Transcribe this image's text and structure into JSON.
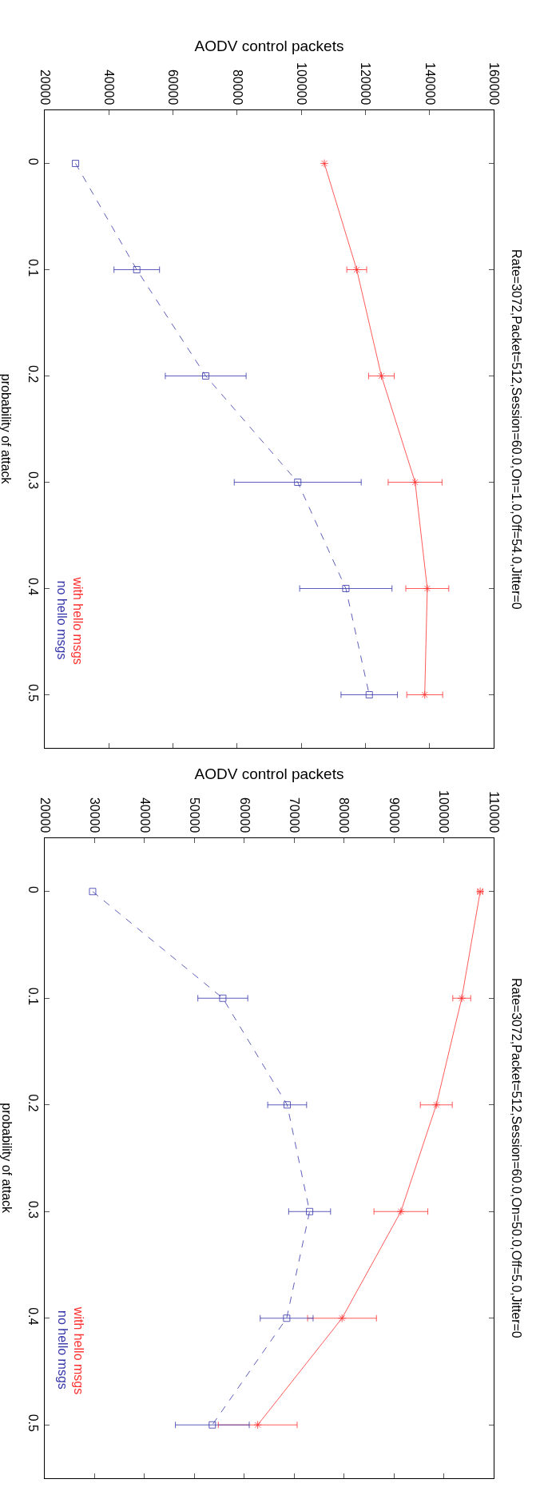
{
  "chart_data": [
    {
      "type": "line",
      "annotations": [
        "Rate=3072,Packet=512,Session=60.0,On=1.0,Off=54.0,Jitter=0"
      ],
      "ylabel": "probability of attack",
      "xlabel": "AODV control packets",
      "ylim": [
        0.55,
        -0.05
      ],
      "yticks": [
        0,
        0.1,
        0.2,
        0.3,
        0.4,
        0.5
      ],
      "xlim": [
        20000,
        160000
      ],
      "xticks": [
        20000,
        40000,
        60000,
        80000,
        100000,
        120000,
        140000,
        160000
      ],
      "legend": "bottom left",
      "series": [
        {
          "name": "with hello msgs",
          "color": "#ff3030",
          "marker": "cross",
          "line_style": "solid",
          "values": [
            0,
            0.1,
            0.2,
            0.3,
            0.4,
            0.5
          ],
          "x": [
            107200,
            117300,
            125000,
            135500,
            139300,
            138500
          ],
          "xerrors": [
            null,
            3100,
            4000,
            8400,
            6700,
            5600
          ]
        },
        {
          "name": "no hello msgs",
          "color": "#3434a8",
          "marker": "square",
          "line_style": "dashed",
          "values": [
            0,
            0.1,
            0.2,
            0.3,
            0.4,
            0.5
          ],
          "x": [
            29600,
            48700,
            70200,
            98900,
            113900,
            121200
          ],
          "xerrors": [
            null,
            7100,
            12600,
            19800,
            14400,
            8800
          ]
        }
      ]
    },
    {
      "type": "line",
      "annotations": [
        "Rate=3072,Packet=512,Session=60.0,On=50.0,Off=5.0,Jitter=0"
      ],
      "ylabel": "probability of attack",
      "xlabel": "AODV control packets",
      "ylim": [
        0.55,
        -0.05
      ],
      "yticks": [
        0,
        0.1,
        0.2,
        0.3,
        0.4,
        0.5
      ],
      "xlim": [
        20000,
        110000
      ],
      "xticks": [
        20000,
        30000,
        40000,
        50000,
        60000,
        70000,
        80000,
        90000,
        100000,
        110000
      ],
      "legend": "bottom left",
      "series": [
        {
          "name": "with hello msgs",
          "color": "#ff3030",
          "marker": "cross",
          "line_style": "solid",
          "values": [
            0,
            0.1,
            0.2,
            0.3,
            0.4,
            0.5
          ],
          "x": [
            107300,
            103600,
            98500,
            91400,
            79600,
            62700
          ],
          "xerrors": [
            500,
            1800,
            3200,
            5400,
            6900,
            7900
          ]
        },
        {
          "name": "no hello msgs",
          "color": "#3434a8",
          "marker": "square",
          "line_style": "dashed",
          "values": [
            0,
            0.1,
            0.2,
            0.3,
            0.4,
            0.5
          ],
          "x": [
            29600,
            55700,
            68600,
            73100,
            68500,
            53600
          ],
          "xerrors": [
            null,
            5000,
            3900,
            4200,
            5300,
            7400
          ]
        }
      ]
    }
  ]
}
